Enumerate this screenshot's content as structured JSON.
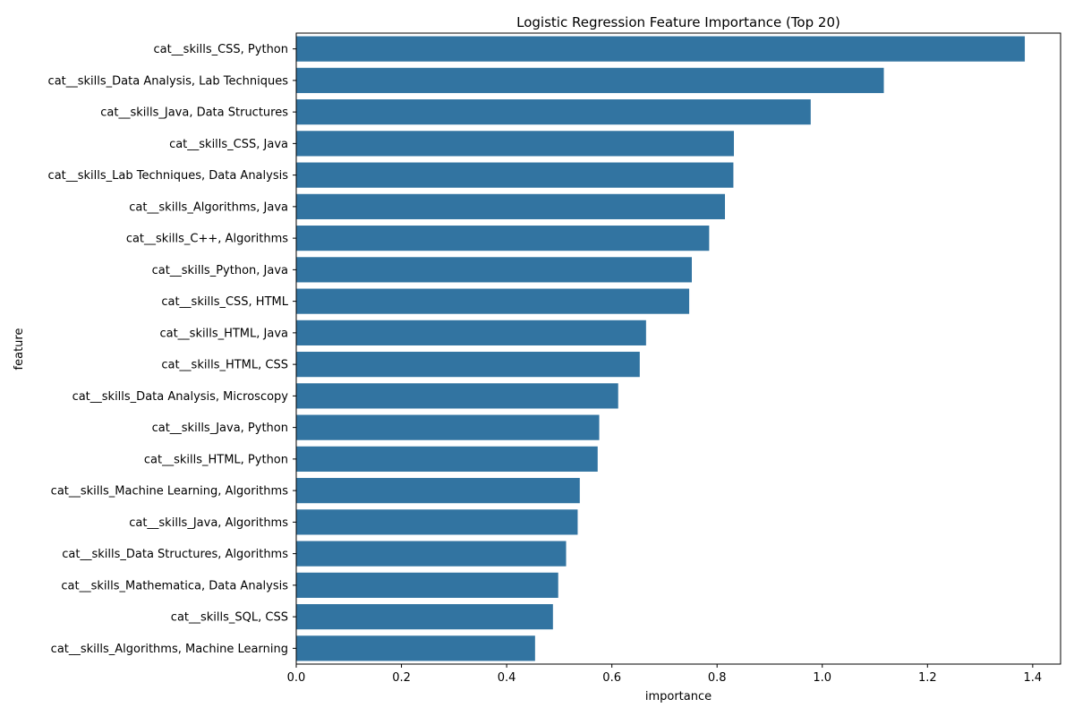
{
  "chart_data": {
    "type": "bar",
    "orientation": "horizontal",
    "title": "Logistic Regression Feature Importance (Top 20)",
    "xlabel": "importance",
    "ylabel": "feature",
    "xlim": [
      0,
      1.453
    ],
    "xticks": [
      0.0,
      0.2,
      0.4,
      0.6,
      0.8,
      1.0,
      1.2,
      1.4
    ],
    "xtick_labels": [
      "0.0",
      "0.2",
      "0.4",
      "0.6",
      "0.8",
      "1.0",
      "1.2",
      "1.4"
    ],
    "grid": false,
    "bar_color": "#3274a1",
    "categories": [
      "cat__skills_CSS, Python",
      "cat__skills_Data Analysis, Lab Techniques",
      "cat__skills_Java, Data Structures",
      "cat__skills_CSS, Java",
      "cat__skills_Lab Techniques, Data Analysis",
      "cat__skills_Algorithms, Java",
      "cat__skills_C++, Algorithms",
      "cat__skills_Python, Java",
      "cat__skills_CSS, HTML",
      "cat__skills_HTML, Java",
      "cat__skills_HTML, CSS",
      "cat__skills_Data Analysis, Microscopy",
      "cat__skills_Java, Python",
      "cat__skills_HTML, Python",
      "cat__skills_Machine Learning, Algorithms",
      "cat__skills_Java, Algorithms",
      "cat__skills_Data Structures, Algorithms",
      "cat__skills_Mathematica, Data Analysis",
      "cat__skills_SQL, CSS",
      "cat__skills_Algorithms, Machine Learning"
    ],
    "values": [
      1.385,
      1.117,
      0.978,
      0.832,
      0.831,
      0.815,
      0.785,
      0.752,
      0.747,
      0.665,
      0.653,
      0.612,
      0.576,
      0.573,
      0.539,
      0.535,
      0.513,
      0.498,
      0.488,
      0.454
    ]
  }
}
